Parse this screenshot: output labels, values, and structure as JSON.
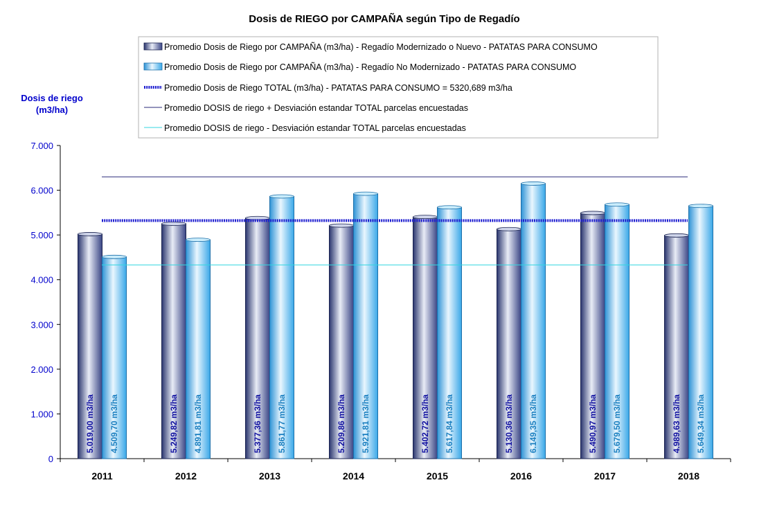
{
  "chart_data": {
    "type": "bar",
    "title": "Dosis de RIEGO por CAMPAÑA según Tipo de Regadío",
    "ylabel_line1": "Dosis de riego",
    "ylabel_line2": "(m3/ha)",
    "xlabel": "",
    "categories": [
      "2011",
      "2012",
      "2013",
      "2014",
      "2015",
      "2016",
      "2017",
      "2018"
    ],
    "ylim": [
      0,
      7000
    ],
    "yticks": [
      0,
      1000,
      2000,
      3000,
      4000,
      5000,
      6000,
      7000
    ],
    "ytick_labels": [
      "0",
      "1.000",
      "2.000",
      "3.000",
      "4.000",
      "5.000",
      "6.000",
      "7.000"
    ],
    "series": [
      {
        "name": "Promedio Dosis de Riego por CAMPAÑA (m3/ha) - Regadío Modernizado o Nuevo - PATATAS PARA CONSUMO",
        "values": [
          5019.0,
          5249.82,
          5377.36,
          5209.86,
          5402.72,
          5130.36,
          5490.97,
          4989.63
        ],
        "labels": [
          "5.019,00 m3/ha",
          "5.249,82 m3/ha",
          "5.377,36 m3/ha",
          "5.209,86 m3/ha",
          "5.402,72 m3/ha",
          "5.130,36 m3/ha",
          "5.490,97 m3/ha",
          "4.989,63 m3/ha"
        ],
        "color": "#3d4a8a",
        "label_color": "#1010a0"
      },
      {
        "name": "Promedio Dosis de Riego por CAMPAÑA (m3/ha) - Regadío No Modernizado - PATATAS PARA CONSUMO",
        "values": [
          4509.7,
          4891.81,
          5861.77,
          5921.81,
          5617.84,
          6149.35,
          5679.5,
          5649.34
        ],
        "labels": [
          "4.509,70 m3/ha",
          "4.891,81 m3/ha",
          "5.861,77 m3/ha",
          "5.921,81 m3/ha",
          "5.617,84 m3/ha",
          "6.149,35 m3/ha",
          "5.679,50 m3/ha",
          "5.649,34 m3/ha"
        ],
        "color": "#3aa8e8",
        "label_color": "#1a7fc0"
      }
    ],
    "reference_lines": [
      {
        "name": "Promedio Dosis de Riego TOTAL (m3/ha) - PATATAS PARA CONSUMO = 5320,689 m3/ha",
        "value": 5320.689,
        "color": "#1f1fd0",
        "style": "thick-dotted"
      },
      {
        "name": "Promedio DOSIS de riego + Desviación estandar TOTAL parcelas encuestadas",
        "value": 6300,
        "color": "#2a2a7a",
        "style": "thin"
      },
      {
        "name": "Promedio DOSIS de riego - Desviación estandar TOTAL parcelas encuestadas",
        "value": 4330,
        "color": "#33d6e0",
        "style": "thin"
      }
    ],
    "grid": false,
    "legend_position": "top"
  }
}
